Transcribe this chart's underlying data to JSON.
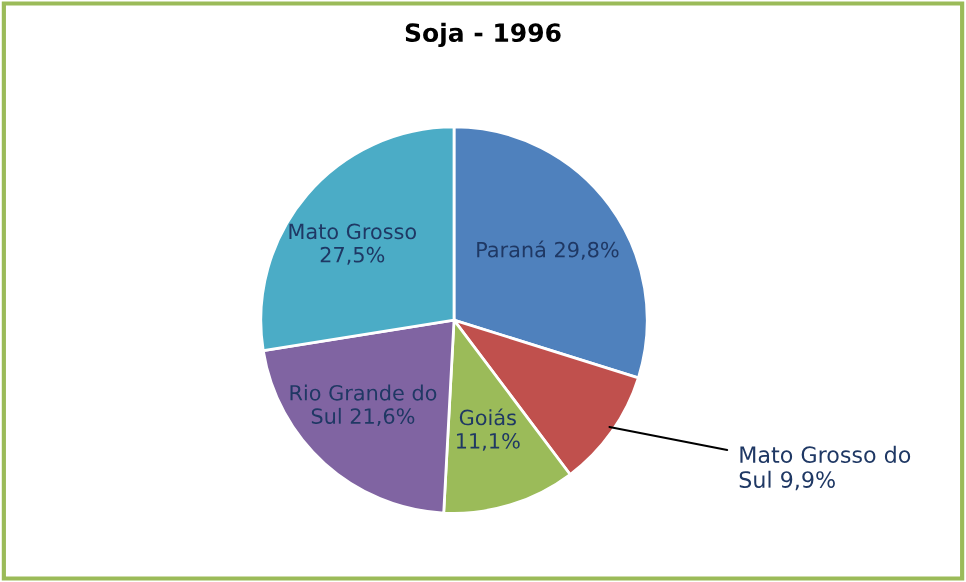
{
  "chart_data": {
    "type": "pie",
    "title": "Soja - 1996",
    "categories": [
      "Paraná",
      "Mato Grosso do Sul",
      "Goiás",
      "Rio Grande do Sul",
      "Mato Grosso"
    ],
    "values": [
      29.8,
      9.9,
      11.1,
      21.6,
      27.5
    ],
    "value_labels": [
      "29,8%",
      "9,9%",
      "11,1%",
      "21,6%",
      "27,5%"
    ],
    "colors": [
      "#4f81bd",
      "#c0504d",
      "#9bbb59",
      "#8064a2",
      "#4bacc6"
    ],
    "legend": false
  }
}
